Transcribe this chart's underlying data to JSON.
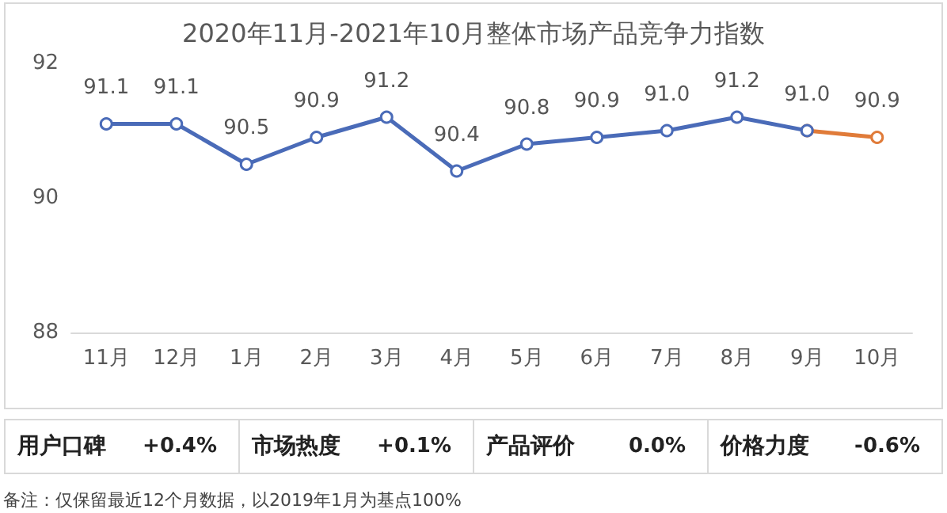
{
  "chart_data": {
    "type": "line",
    "title": "2020年11月-2021年10月整体市场产品竞争力指数",
    "categories": [
      "11月",
      "12月",
      "1月",
      "2月",
      "3月",
      "4月",
      "5月",
      "6月",
      "7月",
      "8月",
      "9月",
      "10月"
    ],
    "series": [
      {
        "color": "#4a6bb8",
        "values": [
          91.1,
          91.1,
          90.5,
          90.9,
          91.2,
          90.4,
          90.8,
          90.9,
          91.0,
          91.2,
          91.0,
          null
        ],
        "value_labels": [
          "91.1",
          "91.1",
          "90.5",
          "90.9",
          "91.2",
          "90.4",
          "90.8",
          "90.9",
          "91.0",
          "91.2",
          "91.0",
          null
        ]
      },
      {
        "color": "#e07b39",
        "values": [
          null,
          null,
          null,
          null,
          null,
          null,
          null,
          null,
          null,
          null,
          91.0,
          90.9
        ],
        "value_labels": [
          null,
          null,
          null,
          null,
          null,
          null,
          null,
          null,
          null,
          null,
          null,
          "90.9"
        ]
      }
    ],
    "ylim": [
      88,
      92
    ],
    "yticks": [
      88,
      90,
      92
    ],
    "grid": false,
    "marker": "circle",
    "line_style": "solid",
    "annotations": [
      "用户口碑",
      "+0.4%",
      "市场热度",
      "+0.1%",
      "产品评价",
      "0.0%",
      "价格力度",
      "-0.6%",
      "备注：仅保留最近12个月数据，以2019年1月为基点100%"
    ]
  }
}
